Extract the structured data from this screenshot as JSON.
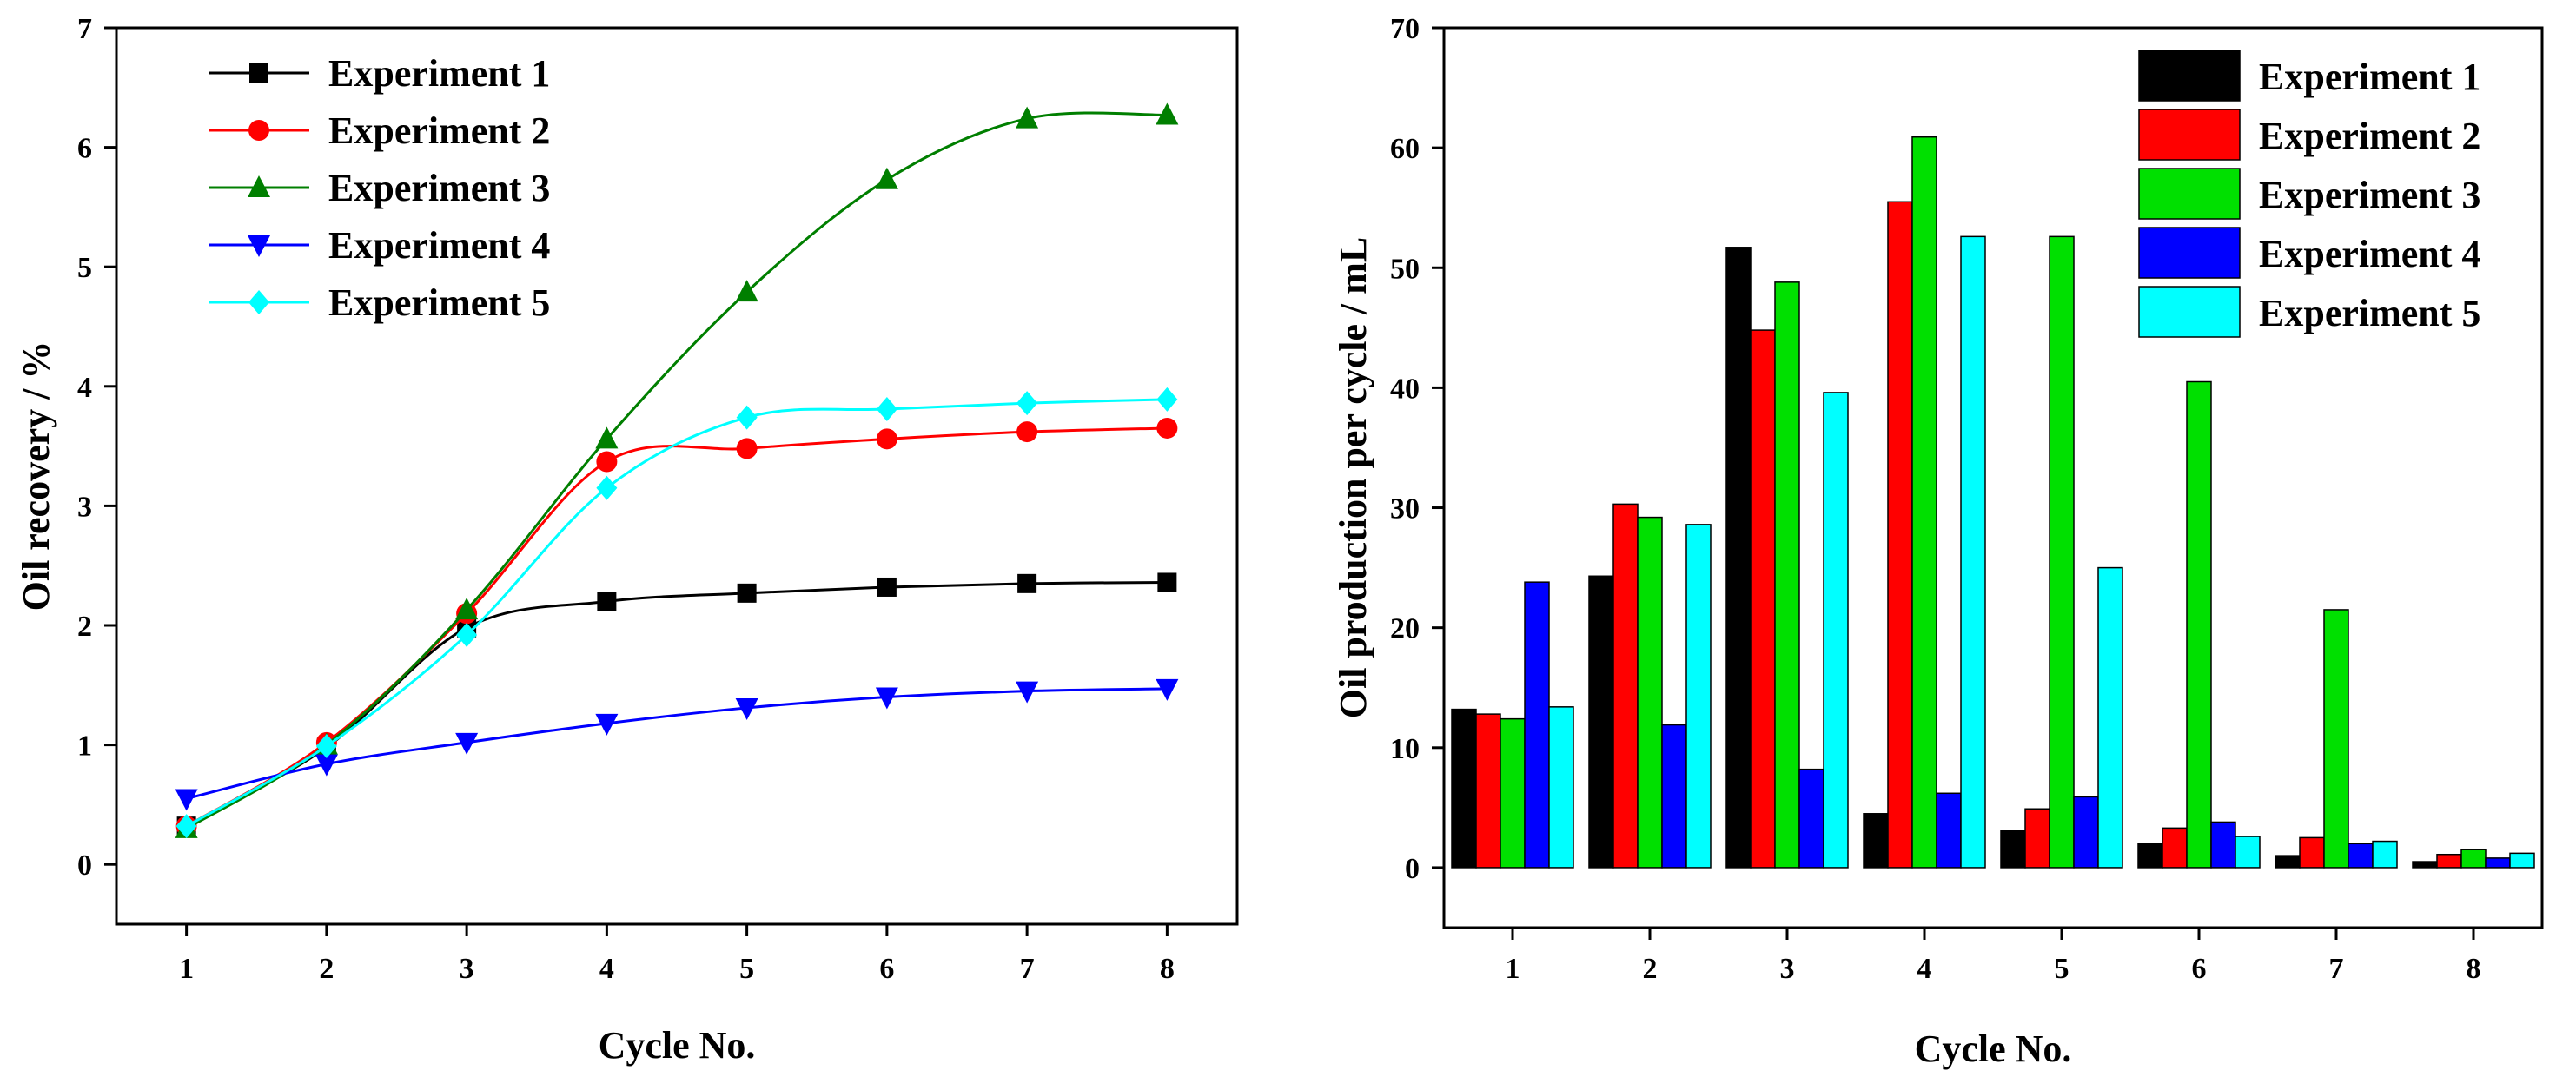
{
  "chart_data": [
    {
      "type": "line",
      "xlabel": "Cycle No.",
      "ylabel": "Oil recovery / %",
      "x": [
        1,
        2,
        3,
        4,
        5,
        6,
        7,
        8
      ],
      "xlim": [
        0.5,
        8.5
      ],
      "ylim": [
        -0.5,
        7
      ],
      "yticks": [
        "0",
        "1",
        "2",
        "3",
        "4",
        "5",
        "6",
        "7"
      ],
      "xticks": [
        "1",
        "2",
        "3",
        "4",
        "5",
        "6",
        "7",
        "8"
      ],
      "legend_position": "top-left",
      "grid": false,
      "series": [
        {
          "name": "Experiment 1",
          "marker": "square",
          "color": "#000000",
          "values": [
            0.32,
            0.98,
            1.98,
            2.2,
            2.27,
            2.32,
            2.35,
            2.36
          ]
        },
        {
          "name": "Experiment 2",
          "marker": "circle",
          "color": "#ff0000",
          "values": [
            0.32,
            1.02,
            2.1,
            3.37,
            3.48,
            3.56,
            3.62,
            3.65
          ]
        },
        {
          "name": "Experiment 3",
          "marker": "triangle-up",
          "color": "#007f00",
          "values": [
            0.3,
            1.0,
            2.13,
            3.56,
            4.79,
            5.73,
            6.24,
            6.27
          ]
        },
        {
          "name": "Experiment 4",
          "marker": "triangle-down",
          "color": "#0000ff",
          "values": [
            0.55,
            0.84,
            1.02,
            1.18,
            1.31,
            1.4,
            1.45,
            1.47
          ]
        },
        {
          "name": "Experiment 5",
          "marker": "diamond",
          "color": "#00ffff",
          "values": [
            0.32,
            0.99,
            1.92,
            3.15,
            3.74,
            3.81,
            3.86,
            3.89
          ]
        }
      ]
    },
    {
      "type": "bar",
      "xlabel": "Cycle No.",
      "ylabel": "Oil production per cycle / mL",
      "categories": [
        "1",
        "2",
        "3",
        "4",
        "5",
        "6",
        "7",
        "8"
      ],
      "ylim": [
        -5,
        70
      ],
      "yticks": [
        "0",
        "10",
        "20",
        "30",
        "40",
        "50",
        "60",
        "70"
      ],
      "legend_position": "top-right",
      "grid": false,
      "series": [
        {
          "name": "Experiment 1",
          "color": "#000000",
          "values": [
            13.2,
            24.3,
            51.7,
            4.5,
            3.1,
            2.0,
            1.0,
            0.5
          ]
        },
        {
          "name": "Experiment 2",
          "color": "#ff0000",
          "values": [
            12.8,
            30.3,
            44.8,
            55.5,
            4.9,
            3.3,
            2.5,
            1.1
          ]
        },
        {
          "name": "Experiment 3",
          "color": "#00e000",
          "values": [
            12.4,
            29.2,
            48.8,
            60.9,
            52.6,
            40.5,
            21.5,
            1.5
          ]
        },
        {
          "name": "Experiment 4",
          "color": "#0000ff",
          "values": [
            23.8,
            11.9,
            8.2,
            6.2,
            5.9,
            3.8,
            2.0,
            0.8
          ]
        },
        {
          "name": "Experiment 5",
          "color": "#00ffff",
          "values": [
            13.4,
            28.6,
            39.6,
            52.6,
            25.0,
            2.6,
            2.2,
            1.2
          ]
        }
      ]
    }
  ]
}
